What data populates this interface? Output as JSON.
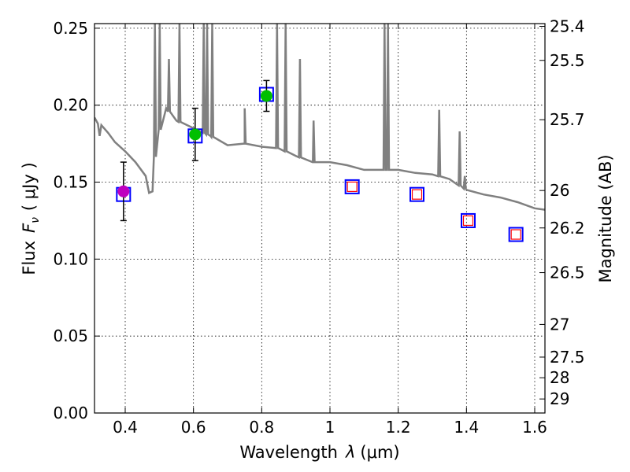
{
  "chart_data": {
    "type": "scatter",
    "xlabel_text": "Wavelength",
    "xlabel_symbol": "λ",
    "xlabel_unit": "(μm)",
    "ylabel_text": "Flux",
    "ylabel_symbol_main": "F",
    "ylabel_symbol_sub": "ν",
    "ylabel_unit": "( μJy )",
    "y2label": "Magnitude (AB)",
    "xlim": [
      0.31,
      1.63
    ],
    "ylim": [
      0.0,
      0.253
    ],
    "grid": true,
    "x_ticks": [
      0.4,
      0.6,
      0.8,
      1.0,
      1.2,
      1.4,
      1.6
    ],
    "x_tick_labels": [
      "0.4",
      "0.6",
      "0.8",
      "1",
      "1.2",
      "1.4",
      "1.6"
    ],
    "y_ticks": [
      0.0,
      0.05,
      0.1,
      0.15,
      0.2,
      0.25
    ],
    "y_tick_labels": [
      "0.00",
      "0.05",
      "0.10",
      "0.15",
      "0.20",
      "0.25"
    ],
    "mag_ticks": [
      25.4,
      25.5,
      25.7,
      26,
      26.2,
      26.5,
      27,
      27.5,
      28,
      29
    ],
    "mag_tick_labels": [
      "25.4",
      "25.5",
      "25.7",
      "26",
      "26.2",
      "26.5",
      "27",
      "27.5",
      "28",
      "29"
    ],
    "observed": [
      {
        "x": 0.395,
        "y": 0.144,
        "err": 0.019,
        "color": "#bf00bf"
      },
      {
        "x": 0.605,
        "y": 0.181,
        "err": 0.017,
        "color": "#00bf00"
      },
      {
        "x": 0.814,
        "y": 0.206,
        "err": 0.01,
        "color": "#00bf00"
      }
    ],
    "model_boxes": [
      {
        "x": 0.395,
        "y": 0.142
      },
      {
        "x": 0.605,
        "y": 0.18
      },
      {
        "x": 0.814,
        "y": 0.207
      },
      {
        "x": 1.065,
        "y": 0.147
      },
      {
        "x": 1.255,
        "y": 0.142
      },
      {
        "x": 1.405,
        "y": 0.125
      },
      {
        "x": 1.545,
        "y": 0.116
      }
    ],
    "nondetections": [
      {
        "x": 1.065,
        "y": 0.147
      },
      {
        "x": 1.255,
        "y": 0.142
      },
      {
        "x": 1.405,
        "y": 0.125
      },
      {
        "x": 1.545,
        "y": 0.116
      }
    ],
    "spectrum_continuum": [
      [
        0.31,
        0.192
      ],
      [
        0.32,
        0.188
      ],
      [
        0.325,
        0.18
      ],
      [
        0.33,
        0.187
      ],
      [
        0.35,
        0.182
      ],
      [
        0.37,
        0.176
      ],
      [
        0.4,
        0.17
      ],
      [
        0.43,
        0.163
      ],
      [
        0.46,
        0.154
      ],
      [
        0.47,
        0.143
      ],
      [
        0.48,
        0.144
      ],
      [
        0.49,
        0.176
      ],
      [
        0.52,
        0.198
      ],
      [
        0.55,
        0.19
      ],
      [
        0.6,
        0.185
      ],
      [
        0.65,
        0.18
      ],
      [
        0.7,
        0.174
      ],
      [
        0.75,
        0.175
      ],
      [
        0.8,
        0.173
      ],
      [
        0.85,
        0.172
      ],
      [
        0.9,
        0.167
      ],
      [
        0.95,
        0.163
      ],
      [
        1.0,
        0.163
      ],
      [
        1.05,
        0.161
      ],
      [
        1.1,
        0.158
      ],
      [
        1.15,
        0.158
      ],
      [
        1.2,
        0.158
      ],
      [
        1.25,
        0.156
      ],
      [
        1.3,
        0.155
      ],
      [
        1.35,
        0.152
      ],
      [
        1.4,
        0.145
      ],
      [
        1.45,
        0.142
      ],
      [
        1.5,
        0.14
      ],
      [
        1.55,
        0.137
      ],
      [
        1.6,
        0.133
      ],
      [
        1.63,
        0.132
      ]
    ],
    "spectrum_lines": [
      {
        "x": 0.487,
        "peak": 0.253
      },
      {
        "x": 0.501,
        "peak": 0.253
      },
      {
        "x": 0.528,
        "peak": 0.23
      },
      {
        "x": 0.559,
        "peak": 0.253
      },
      {
        "x": 0.63,
        "peak": 0.253
      },
      {
        "x": 0.64,
        "peak": 0.253
      },
      {
        "x": 0.655,
        "peak": 0.253
      },
      {
        "x": 0.75,
        "peak": 0.198
      },
      {
        "x": 0.845,
        "peak": 0.253
      },
      {
        "x": 0.87,
        "peak": 0.253
      },
      {
        "x": 0.912,
        "peak": 0.23
      },
      {
        "x": 0.952,
        "peak": 0.19
      },
      {
        "x": 1.16,
        "peak": 0.253
      },
      {
        "x": 1.17,
        "peak": 0.253
      },
      {
        "x": 1.32,
        "peak": 0.197
      },
      {
        "x": 1.38,
        "peak": 0.183
      },
      {
        "x": 1.395,
        "peak": 0.154
      }
    ],
    "colors": {
      "spectrum": "#808080",
      "box_edge": "#0000ff",
      "nondetection_edge": "#ff0000",
      "grid": "#000000",
      "errorbar": "#000000"
    }
  }
}
